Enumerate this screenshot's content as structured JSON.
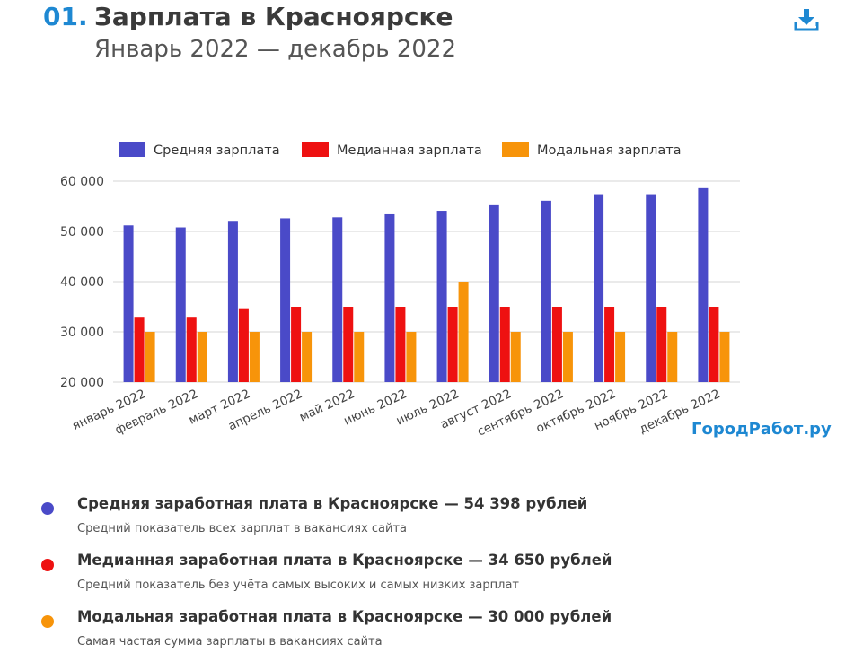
{
  "header": {
    "number": "01.",
    "title": "Зарплата в Красноярске",
    "subtitle": "Январь 2022 — декабрь 2022"
  },
  "brand": "ГородРабот.ру",
  "icons": {
    "download": "download-icon"
  },
  "colors": {
    "accent": "#1e88d2",
    "average": "#4a4ac8",
    "median": "#ee1111",
    "modal": "#f7940a"
  },
  "chart_data": {
    "type": "bar",
    "categories": [
      "январь 2022",
      "февраль 2022",
      "март 2022",
      "апрель 2022",
      "май 2022",
      "июнь 2022",
      "июль 2022",
      "август 2022",
      "сентябрь 2022",
      "октябрь 2022",
      "ноябрь 2022",
      "декабрь 2022"
    ],
    "series": [
      {
        "name": "Средняя зарплата",
        "color": "#4a4ac8",
        "values": [
          51200,
          50800,
          52100,
          52600,
          52800,
          53400,
          54100,
          55200,
          56100,
          57400,
          57400,
          58600
        ]
      },
      {
        "name": "Медианная зарплата",
        "color": "#ee1111",
        "values": [
          33000,
          33000,
          34700,
          35000,
          35000,
          35000,
          35000,
          35000,
          35000,
          35000,
          35000,
          35000
        ]
      },
      {
        "name": "Модальная зарплата",
        "color": "#f7940a",
        "values": [
          30000,
          30000,
          30000,
          30000,
          30000,
          30000,
          40000,
          30000,
          30000,
          30000,
          30000,
          30000
        ]
      }
    ],
    "yticks": [
      "20 000",
      "30 000",
      "40 000",
      "50 000",
      "60 000"
    ],
    "ylim": [
      20000,
      60000
    ],
    "title": "",
    "xlabel": "",
    "ylabel": "",
    "legend_position": "top",
    "grid": true
  },
  "stats": [
    {
      "color": "#4a4ac8",
      "title": "Средняя заработная плата в Красноярске — 54 398 рублей",
      "desc": "Средний показатель всех зарплат в вакансиях сайта"
    },
    {
      "color": "#ee1111",
      "title": "Медианная заработная плата в Красноярске — 34 650 рублей",
      "desc": "Средний показатель без учёта самых высоких и самых низких зарплат"
    },
    {
      "color": "#f7940a",
      "title": "Модальная заработная плата в Красноярске — 30 000 рублей",
      "desc": "Самая частая сумма зарплаты в вакансиях сайта"
    }
  ]
}
